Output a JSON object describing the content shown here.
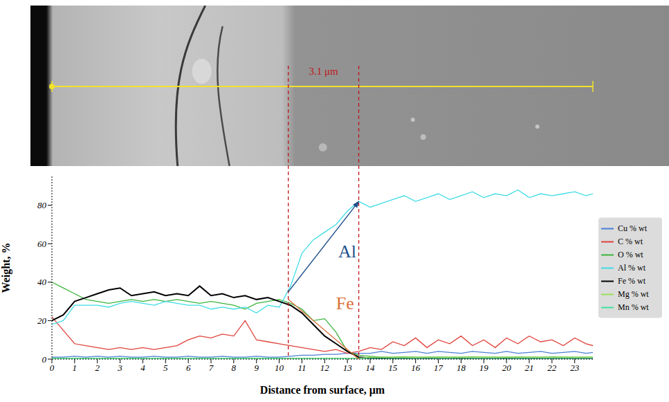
{
  "chart_data": {
    "type": "line",
    "x_label": "Distance from surface, μm",
    "y_label": "Weight, %",
    "xlim": [
      0,
      23.8
    ],
    "xticks": [
      0,
      1,
      2,
      3,
      4,
      5,
      6,
      7,
      8,
      9,
      10,
      11,
      12,
      13,
      14,
      15,
      16,
      17,
      18,
      19,
      20,
      21,
      22,
      23
    ],
    "ylim": [
      0,
      95
    ],
    "yticks": [
      0,
      20,
      40,
      60,
      80
    ],
    "grid": false,
    "legend": "right",
    "x": [
      0,
      0.5,
      1,
      1.5,
      2,
      2.5,
      3,
      3.5,
      4,
      4.5,
      5,
      5.5,
      6,
      6.5,
      7,
      7.5,
      8,
      8.5,
      9,
      9.5,
      10,
      10.5,
      11,
      11.5,
      12,
      12.5,
      13,
      13.5,
      14,
      14.5,
      15,
      15.5,
      16,
      16.5,
      17,
      17.5,
      18,
      18.5,
      19,
      19.5,
      20,
      20.5,
      21,
      21.5,
      22,
      22.5,
      23,
      23.5,
      23.8
    ],
    "series": [
      {
        "name": "Cu % wt",
        "color": "#4a7fd4",
        "values": [
          1,
          1,
          1.5,
          1,
          1.5,
          1,
          1.5,
          1,
          1,
          1.5,
          1,
          1,
          1.5,
          1,
          1,
          1.5,
          1,
          1,
          1.5,
          1,
          1,
          1.5,
          2,
          2,
          2.5,
          2.5,
          3,
          3,
          3,
          4,
          3,
          3.5,
          4,
          3,
          4,
          3.5,
          3,
          4,
          3.5,
          3,
          4,
          3,
          3.5,
          4,
          3,
          3.5,
          4,
          3,
          3.5
        ]
      },
      {
        "name": "C % wt",
        "color": "#e0413a",
        "values": [
          22,
          15,
          8,
          7,
          6,
          5,
          6,
          5,
          6,
          5,
          6,
          7,
          10,
          12,
          11,
          13,
          12,
          20,
          10,
          9,
          8,
          7,
          6,
          5,
          4,
          5,
          3,
          4,
          6,
          5,
          9,
          7,
          11,
          6,
          10,
          8,
          12,
          7,
          10,
          6,
          11,
          8,
          12,
          9,
          10,
          7,
          11,
          8,
          7
        ]
      },
      {
        "name": "O % wt",
        "color": "#3cb43c",
        "values": [
          40,
          37,
          34,
          31,
          30,
          29,
          30,
          31,
          30,
          31,
          30,
          31,
          30,
          29,
          30,
          29,
          28,
          26,
          29,
          30,
          31,
          29,
          26,
          20,
          21,
          14,
          4,
          2,
          1.5,
          1,
          1,
          1.2,
          1,
          1,
          1.1,
          1,
          1,
          1.2,
          1,
          1,
          1,
          1.1,
          1,
          1,
          1.2,
          1,
          1,
          1,
          1
        ]
      },
      {
        "name": "Al % wt",
        "color": "#40dce6",
        "values": [
          18,
          20,
          28,
          28,
          28,
          27,
          29,
          30,
          29,
          28,
          30,
          29,
          28,
          28,
          26,
          27,
          26,
          27,
          24,
          28,
          27,
          38,
          55,
          62,
          66,
          70,
          77,
          82,
          79,
          81,
          83,
          85,
          82,
          84,
          86,
          83,
          85,
          87,
          84,
          86,
          85,
          88,
          84,
          86,
          85,
          86,
          87,
          85,
          86
        ]
      },
      {
        "name": "Fe % wt",
        "color": "#000000",
        "values": [
          20,
          23,
          30,
          32,
          34,
          36,
          37,
          33,
          34,
          35,
          33,
          34,
          33,
          38,
          33,
          34,
          32,
          33,
          31,
          32,
          30,
          28,
          24,
          18,
          12,
          8,
          4,
          1,
          0.5,
          0.4,
          0.3,
          0.3,
          0.2,
          0.3,
          0.2,
          0.2,
          0.3,
          0.2,
          0.2,
          0.2,
          0.3,
          0.2,
          0.2,
          0.2,
          0.2,
          0.2,
          0.2,
          0.2,
          0.2
        ]
      },
      {
        "name": "Mg % wt",
        "color": "#9ae05a",
        "values": [
          0.5,
          0.5,
          0.5,
          0.5,
          0.5,
          0.5,
          0.5,
          0.5,
          0.5,
          0.5,
          0.5,
          0.5,
          0.5,
          0.5,
          0.5,
          0.5,
          0.5,
          0.5,
          0.5,
          0.5,
          0.5,
          0.5,
          0.5,
          0.5,
          0.5,
          0.5,
          0.5,
          0.5,
          1,
          1,
          1,
          1,
          1,
          1,
          1,
          1,
          1,
          1,
          1,
          1,
          1,
          1,
          1,
          1,
          1,
          1,
          1,
          1,
          1
        ]
      },
      {
        "name": "Mn % wt",
        "color": "#3ee0a0",
        "values": [
          0.3,
          0.3,
          0.3,
          0.3,
          0.3,
          0.3,
          0.3,
          0.3,
          0.3,
          0.3,
          0.3,
          0.3,
          0.3,
          0.3,
          0.3,
          0.3,
          0.3,
          0.3,
          0.3,
          0.3,
          0.3,
          0.3,
          0.3,
          0.3,
          0.3,
          0.3,
          0.3,
          0.3,
          0.3,
          0.3,
          0.3,
          0.3,
          0.3,
          0.3,
          0.3,
          0.3,
          0.3,
          0.3,
          0.3,
          0.3,
          0.3,
          0.3,
          0.3,
          0.3,
          0.3,
          0.3,
          0.3,
          0.3,
          0.3
        ]
      }
    ],
    "markers": {
      "x": [
        10.4,
        13.5
      ],
      "label": "3.1 μm",
      "color": "#c0161b"
    },
    "annotations": [
      {
        "text": "Al",
        "x": 12.6,
        "y": 53,
        "color": "#1f4e8c",
        "from": [
          10.4,
          35
        ],
        "to": [
          13.5,
          82
        ],
        "line_style": "arrow"
      },
      {
        "text": "Fe",
        "x": 12.5,
        "y": 26,
        "color": "#d9703a",
        "from": [
          10.4,
          31
        ],
        "to": [
          13.5,
          0
        ],
        "line_style": "solid"
      }
    ]
  }
}
